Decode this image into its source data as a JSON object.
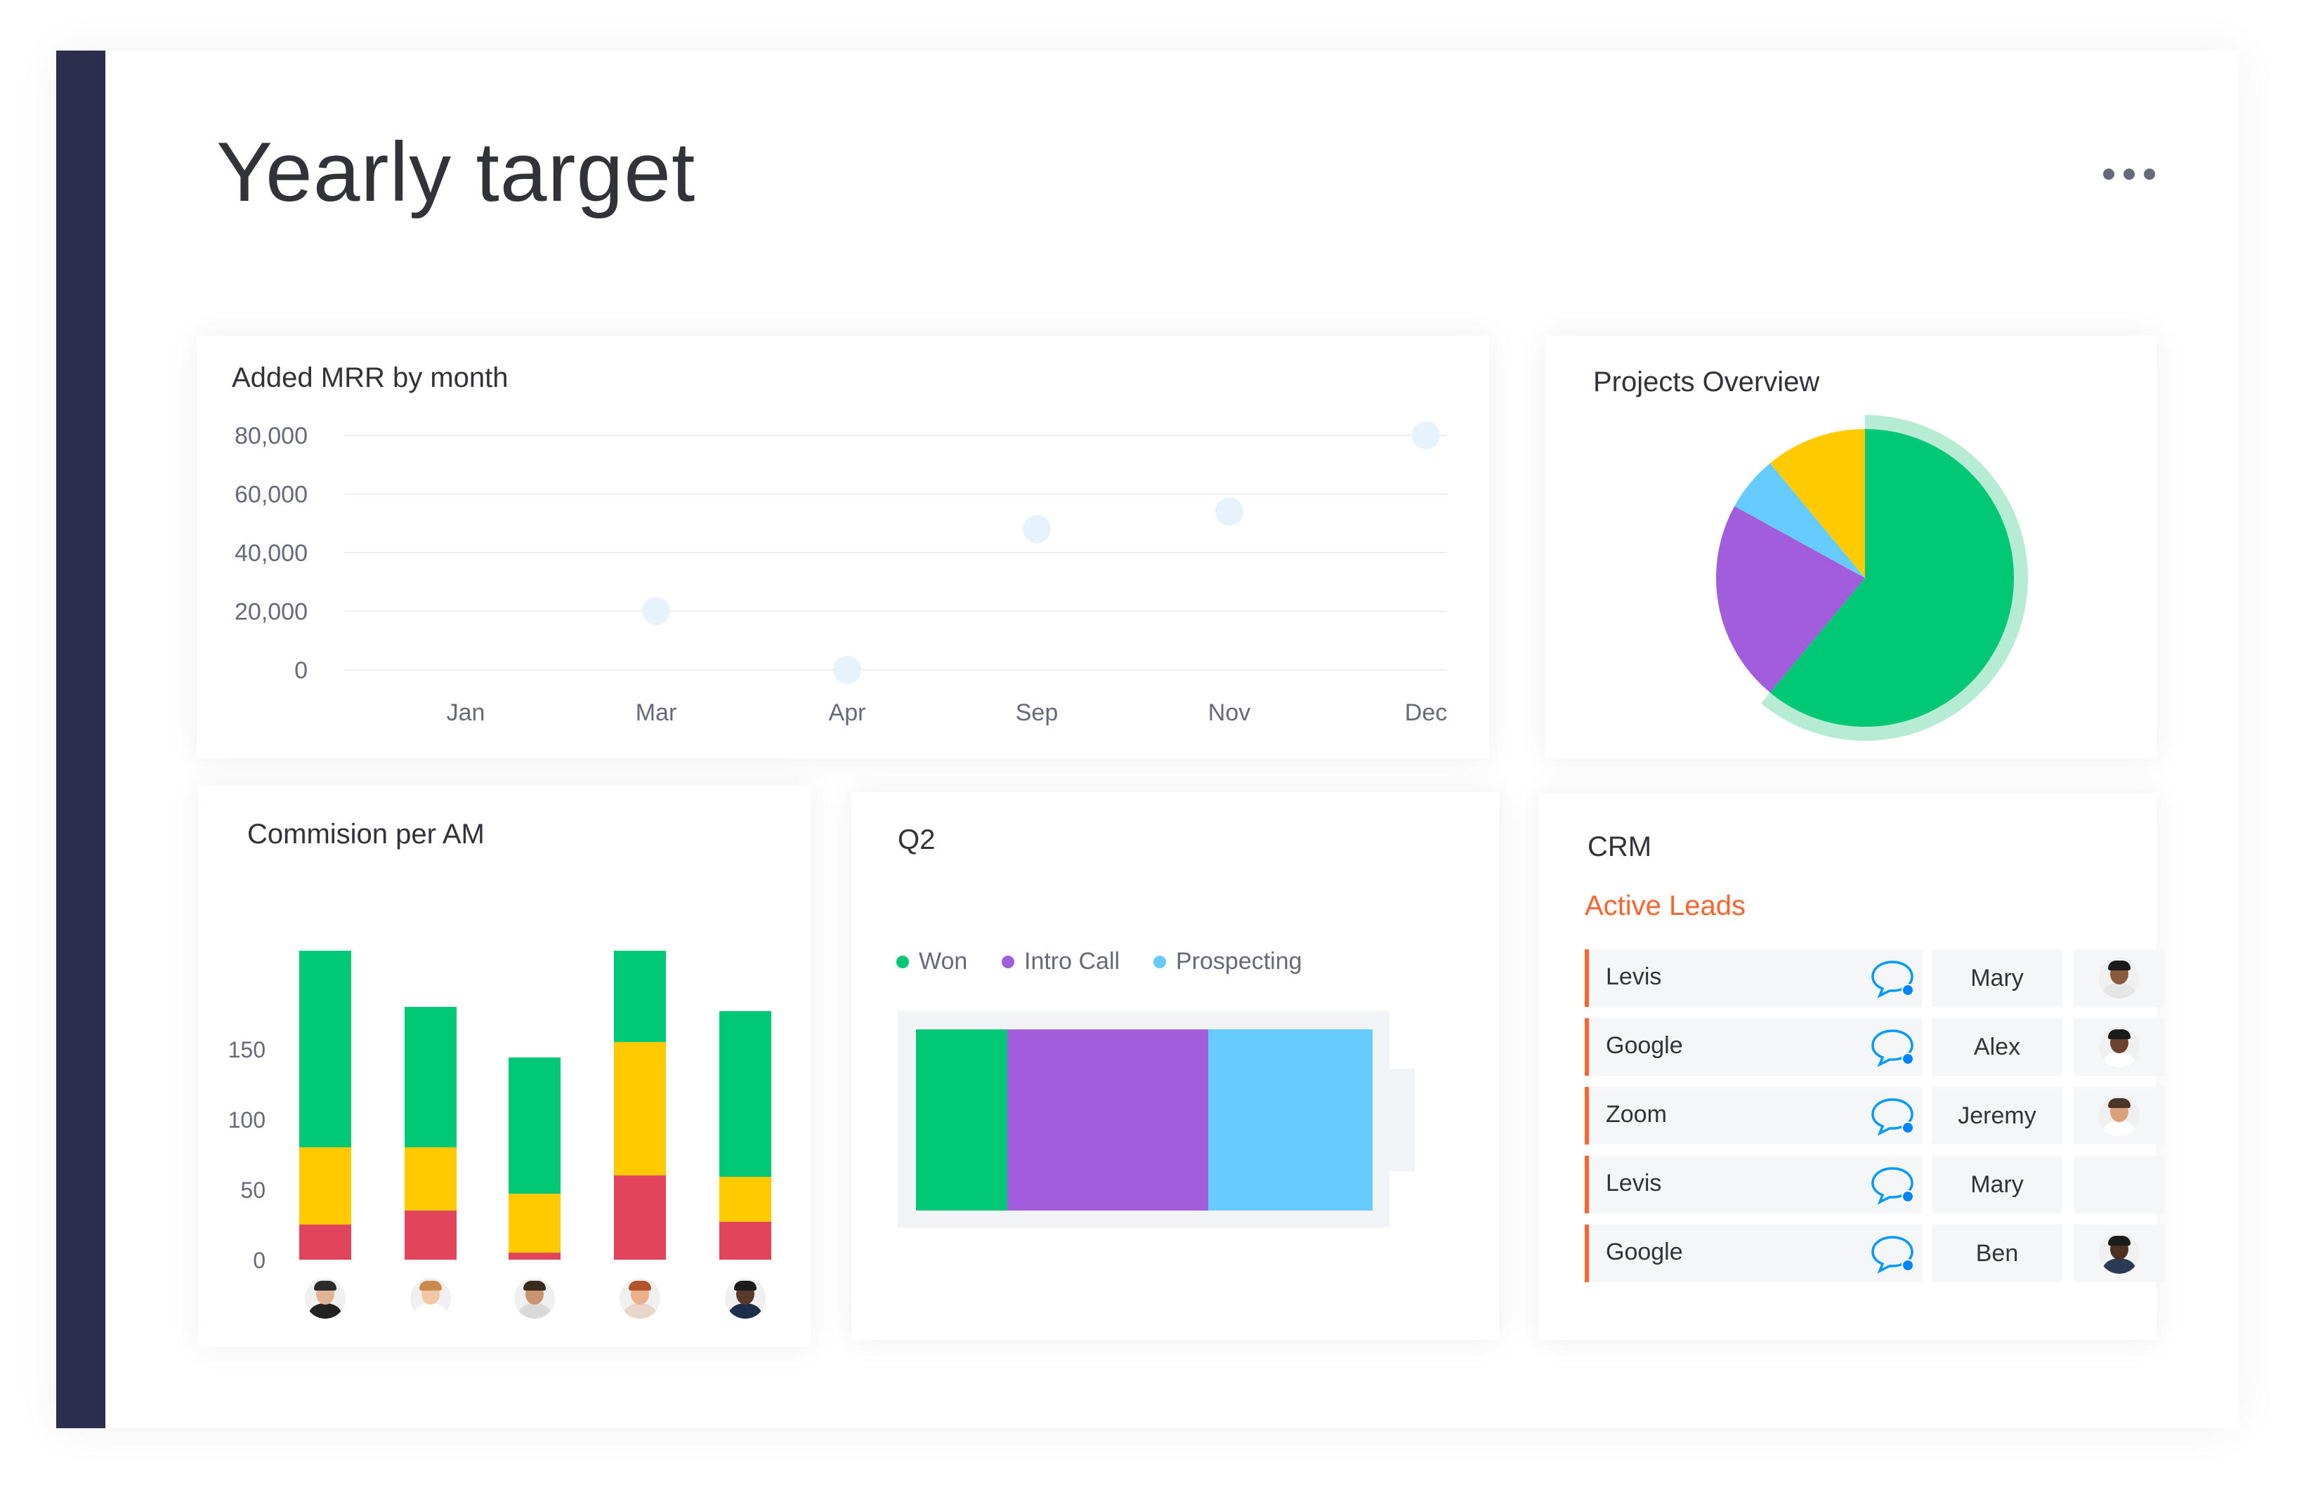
{
  "page": {
    "title": "Yearly target",
    "menu_icon": "more-horizontal-icon"
  },
  "colors": {
    "green": "#00c875",
    "yellow": "#ffcb00",
    "red": "#e2445c",
    "purple": "#a25ddc",
    "blue": "#66ccff",
    "accent": "#ff642e",
    "sidebar": "#292f4c",
    "pie_ring": "#b6ecd3",
    "dot": "#e6f3fd"
  },
  "mrr": {
    "title": "Added MRR by month",
    "chart_data": {
      "type": "scatter",
      "title": "Added MRR by month",
      "categories": [
        "Jan",
        "Mar",
        "Apr",
        "Sep",
        "Nov",
        "Dec"
      ],
      "y_ticks": [
        "80,000",
        "60,000",
        "40,000",
        "20,000",
        "0"
      ],
      "ylim": [
        0,
        80000
      ],
      "points": [
        {
          "x": "Mar",
          "y": 20000
        },
        {
          "x": "Apr",
          "y": 0
        },
        {
          "x": "Sep",
          "y": 48000
        },
        {
          "x": "Nov",
          "y": 54000
        },
        {
          "x": "Dec",
          "y": 80000
        }
      ],
      "grid": true
    }
  },
  "projects": {
    "title": "Projects Overview",
    "chart_data": {
      "type": "pie",
      "slices": [
        {
          "value": 61,
          "color": "#00c875"
        },
        {
          "value": 22,
          "color": "#a25ddc"
        },
        {
          "value": 6,
          "color": "#66ccff"
        },
        {
          "value": 11,
          "color": "#ffcb00"
        }
      ]
    }
  },
  "commission": {
    "title": "Commision per AM",
    "chart_data": {
      "type": "bar",
      "stacked": true,
      "y_ticks": [
        "150",
        "100",
        "50",
        "0"
      ],
      "ylim": [
        0,
        230
      ],
      "bars": [
        {
          "red": 25,
          "yellow": 55,
          "green": 140
        },
        {
          "red": 35,
          "yellow": 45,
          "green": 100
        },
        {
          "red": 5,
          "yellow": 42,
          "green": 97
        },
        {
          "red": 60,
          "yellow": 95,
          "green": 65
        },
        {
          "red": 27,
          "yellow": 32,
          "green": 118
        }
      ]
    },
    "avatars": [
      {
        "skin": "#e0b493",
        "hair": "#2b2b2b",
        "shirt": "#222222"
      },
      {
        "skin": "#f1c7a4",
        "hair": "#c98a4b",
        "shirt": "#ffffff"
      },
      {
        "skin": "#c99470",
        "hair": "#3a2a1e",
        "shirt": "#d9d9d9"
      },
      {
        "skin": "#eab08c",
        "hair": "#b0542c",
        "shirt": "#e8d6c8"
      },
      {
        "skin": "#5a3b2a",
        "hair": "#1b1b1b",
        "shirt": "#1f2d4d"
      }
    ]
  },
  "q2": {
    "title": "Q2",
    "legend": [
      {
        "label": "Won",
        "color": "#00c875"
      },
      {
        "label": "Intro Call",
        "color": "#a25ddc"
      },
      {
        "label": "Prospecting",
        "color": "#66ccff"
      }
    ],
    "segments": [
      {
        "label": "Won",
        "value": 20,
        "color": "#00c875"
      },
      {
        "label": "Intro Call",
        "value": 44,
        "color": "#a25ddc"
      },
      {
        "label": "Prospecting",
        "value": 36,
        "color": "#66ccff"
      }
    ]
  },
  "crm": {
    "title": "CRM",
    "subtitle": "Active Leads",
    "chat_icon": "chat-bubble-icon",
    "rows": [
      {
        "company": "Levis",
        "owner": "Mary",
        "avatar": {
          "skin": "#8a5a3c",
          "hair": "#1b1b1b",
          "shirt": "#e5e5e5"
        }
      },
      {
        "company": "Google",
        "owner": "Alex",
        "avatar": {
          "skin": "#6b4430",
          "hair": "#1b1b1b",
          "shirt": "#ffffff"
        }
      },
      {
        "company": "Zoom",
        "owner": "Jeremy",
        "avatar": {
          "skin": "#d9a07a",
          "hair": "#4a3526",
          "shirt": "#ffffff"
        }
      },
      {
        "company": "Levis",
        "owner": "Mary",
        "avatar": null
      },
      {
        "company": "Google",
        "owner": "Ben",
        "avatar": {
          "skin": "#4d3020",
          "hair": "#1b1b1b",
          "shirt": "#2b3a55"
        }
      }
    ]
  }
}
